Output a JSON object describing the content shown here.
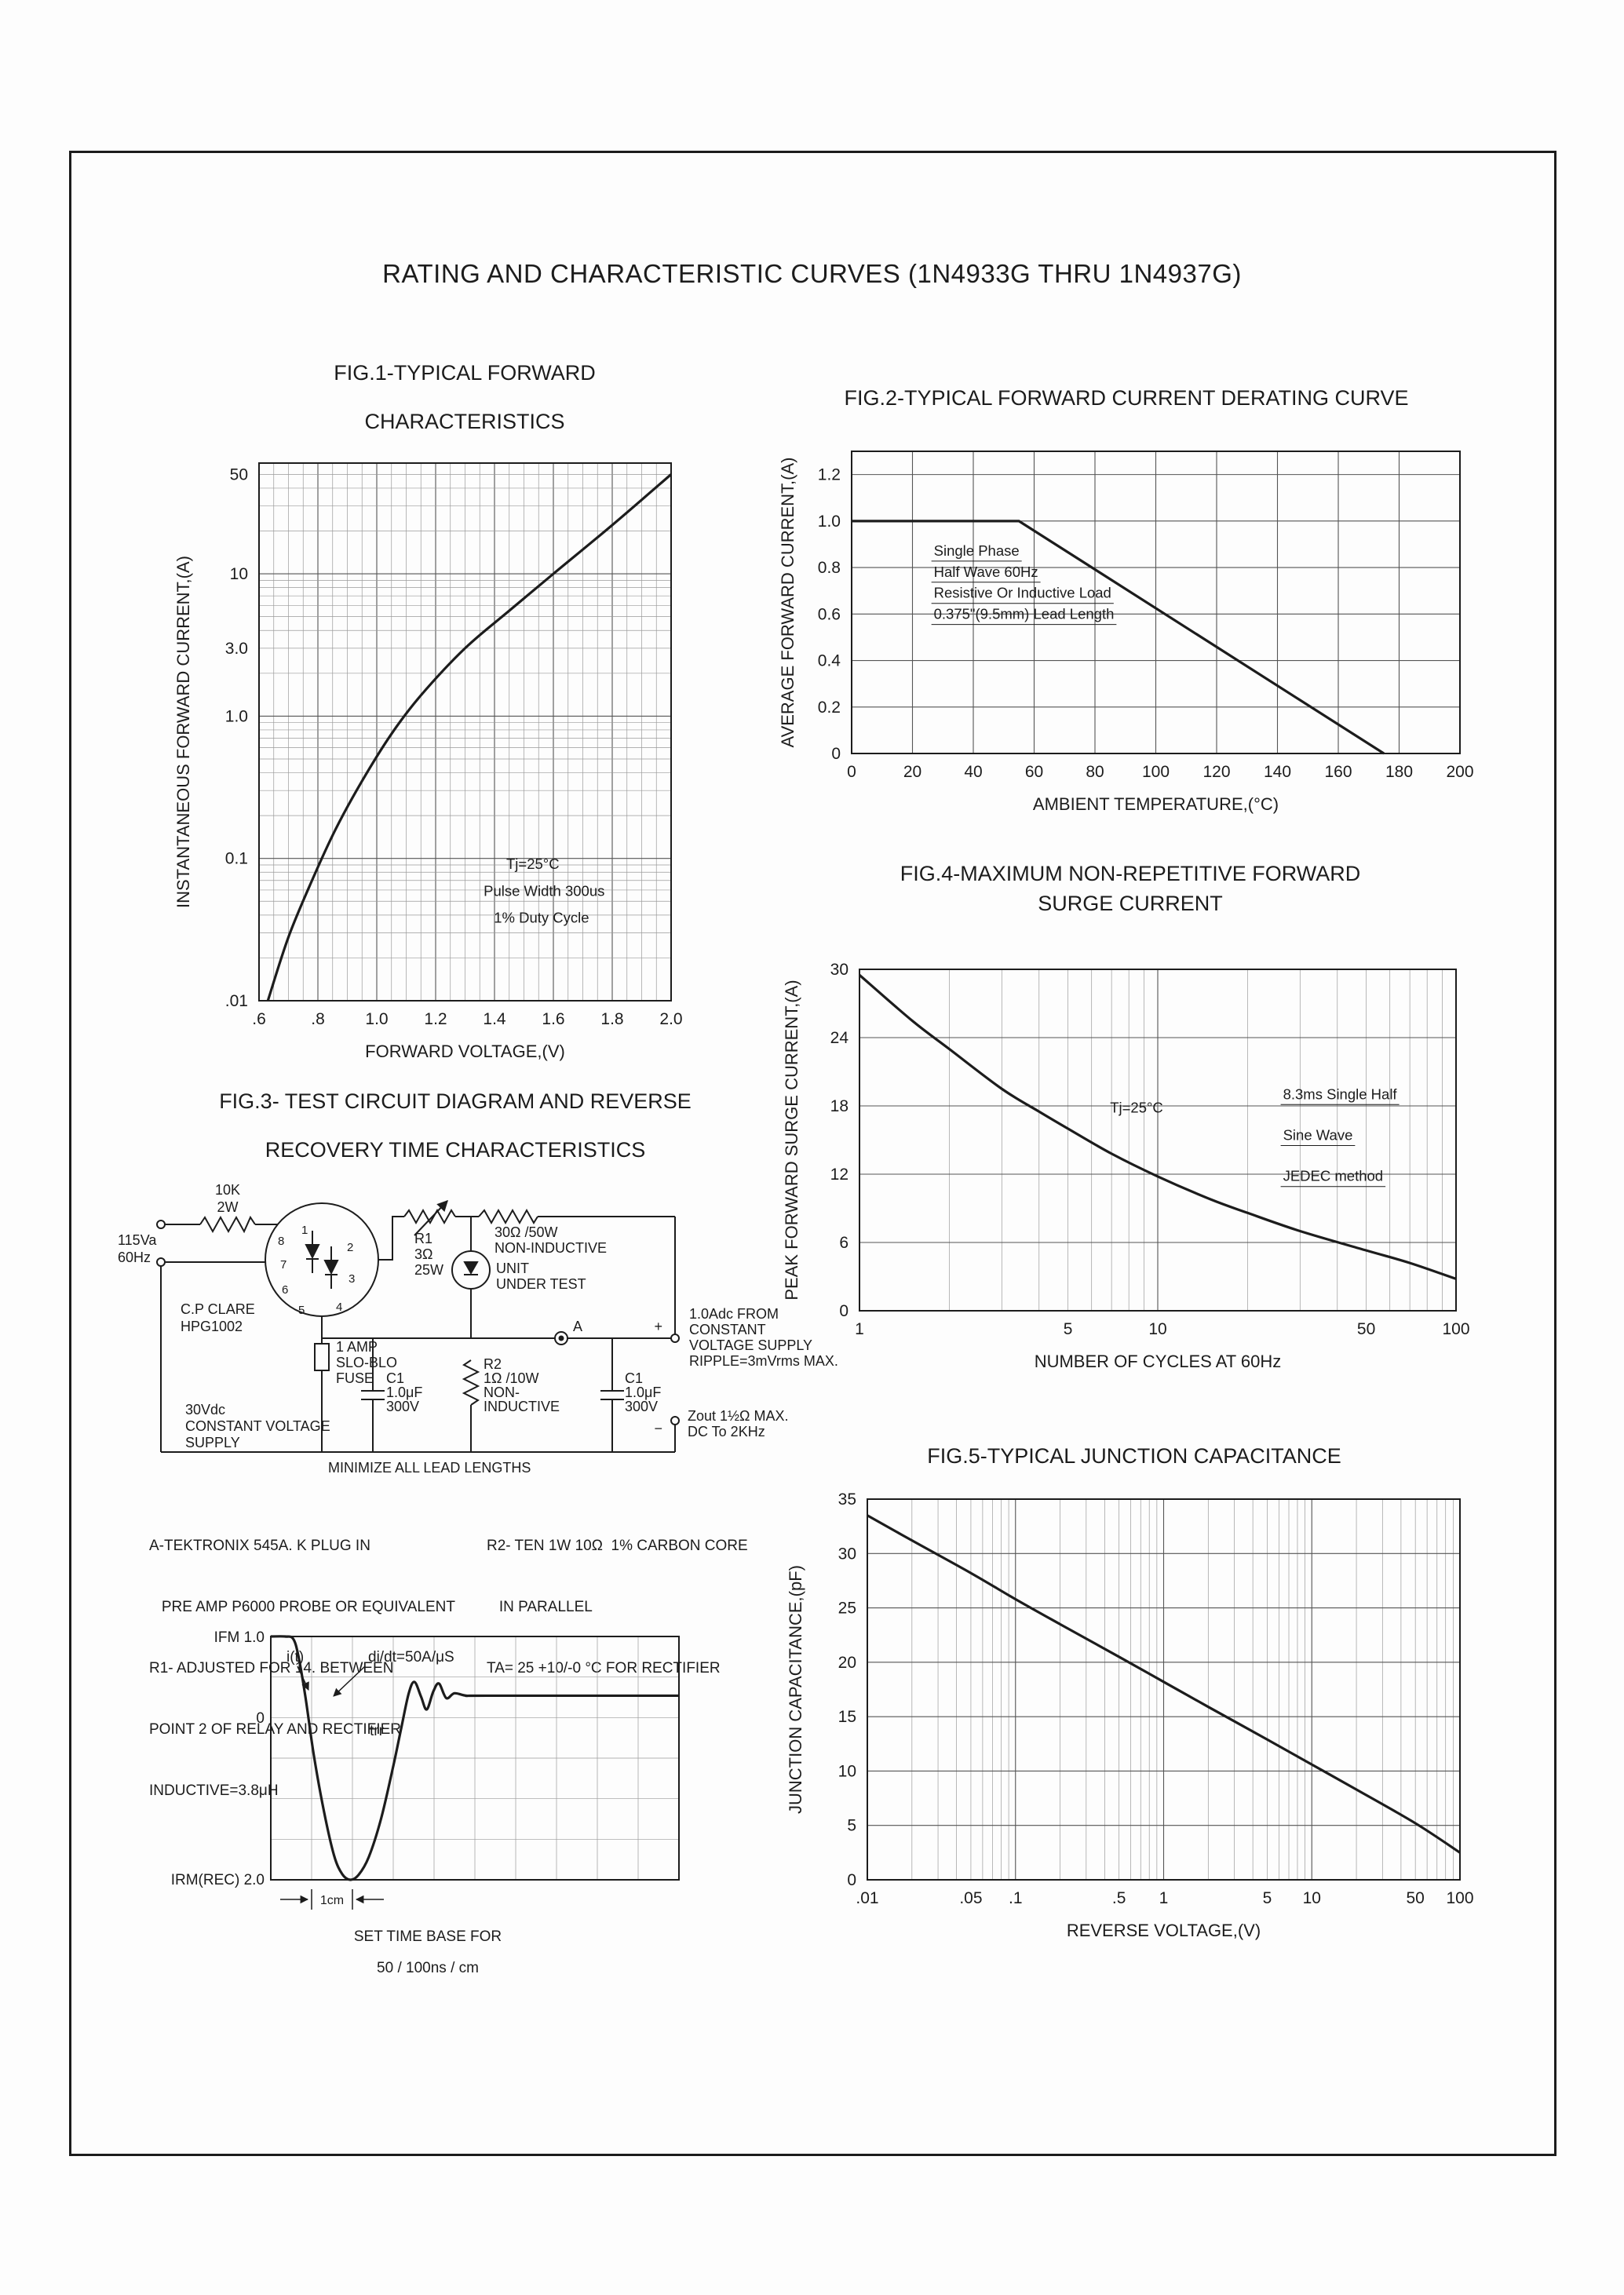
{
  "page": {
    "title": "RATING AND CHARACTERISTIC CURVES (1N4933G THRU 1N4937G)"
  },
  "colors": {
    "ink": "#1c1c1c",
    "grid_major": "#555555",
    "grid_minor": "#9a9a9a",
    "paper": "#fdfdfd"
  },
  "figures": {
    "fig1": {
      "title_lines": [
        "FIG.1-TYPICAL FORWARD",
        "CHARACTERISTICS"
      ]
    },
    "fig2": {
      "title_lines": [
        "FIG.2-TYPICAL FORWARD CURRENT DERATING CURVE"
      ]
    },
    "fig3": {
      "title_lines": [
        "FIG.3- TEST CIRCUIT DIAGRAM AND REVERSE",
        "RECOVERY TIME CHARACTERISTICS"
      ]
    },
    "fig4": {
      "title_lines": [
        "FIG.4-MAXIMUM NON-REPETITIVE FORWARD",
        "SURGE CURRENT"
      ]
    },
    "fig5": {
      "title_lines": [
        "FIG.5-TYPICAL JUNCTION CAPACITANCE"
      ]
    }
  },
  "fig3": {
    "circuit": {
      "labels": {
        "r_top": [
          "10K",
          "2W"
        ],
        "source": [
          "115Va",
          "60Hz"
        ],
        "relay": [
          "C.P CLARE",
          "HPG1002"
        ],
        "pins": [
          "8",
          "1",
          "7",
          "2",
          "6",
          "3",
          "5",
          "4"
        ],
        "r1": [
          "R1",
          "3Ω",
          "25W"
        ],
        "r30": [
          "30Ω /50W",
          "NON-INDUCTIVE"
        ],
        "uut": [
          "UNIT",
          "UNDER TEST"
        ],
        "probe": "A",
        "fuse": [
          "1 AMP",
          "SLO-BLO",
          "FUSE"
        ],
        "r2": [
          "R2",
          "1Ω /10W",
          "NON-",
          "INDUCTIVE"
        ],
        "c1_left": [
          "C1",
          "1.0μF",
          "300V"
        ],
        "c1_right": [
          "C1",
          "1.0μF",
          "300V"
        ],
        "supply": [
          "30Vdc",
          "CONSTANT VOLTAGE",
          "SUPPLY"
        ],
        "output_top": [
          "1.0Adc FROM",
          "CONSTANT",
          "VOLTAGE SUPPLY",
          "RIPPLE=3mVrms MAX."
        ],
        "output_bottom": [
          "Zout 1½Ω MAX.",
          "DC To 2KHz"
        ],
        "minimize": "MINIMIZE ALL LEAD LENGTHS",
        "plus": "+",
        "minus": "−"
      }
    },
    "notes_left": [
      "A-TEKTRONIX 545A. K PLUG IN",
      "   PRE AMP P6000 PROBE OR EQUIVALENT",
      "R1- ADJUSTED FOR 14. BETWEEN",
      "POINT 2 OF RELAY AND RECTIFIER",
      "INDUCTIVE=3.8μH"
    ],
    "notes_right": [
      "R2- TEN 1W 10Ω  1% CARBON CORE",
      "   IN PARALLEL",
      "TA= 25 +10/-0 °C FOR RECTIFIER"
    ],
    "waveform_labels": {
      "ifm": "IFM 1.0",
      "zero": "0",
      "irm": "IRM(REC) 2.0",
      "it": "i(t)",
      "didt": "di/dt=50A/μS",
      "trr": "trr",
      "one_cm": "1cm",
      "timebase1": "SET TIME BASE FOR",
      "timebase2": "50 / 100ns / cm"
    }
  },
  "chart_data": [
    {
      "id": "fig1",
      "type": "line",
      "title": "FIG.1-TYPICAL FORWARD CHARACTERISTICS",
      "xlabel": "FORWARD VOLTAGE,(V)",
      "ylabel": "INSTANTANEOUS FORWARD CURRENT,(A)",
      "xscale": "linear",
      "yscale": "log",
      "xlim": [
        0.6,
        2.0
      ],
      "ylim": [
        0.01,
        60
      ],
      "xticks": [
        [
          0.6,
          ".6"
        ],
        [
          0.8,
          ".8"
        ],
        [
          1.0,
          "1.0"
        ],
        [
          1.2,
          "1.2"
        ],
        [
          1.4,
          "1.4"
        ],
        [
          1.6,
          "1.6"
        ],
        [
          1.8,
          "1.8"
        ],
        [
          2.0,
          "2.0"
        ]
      ],
      "yticks": [
        [
          50,
          "50"
        ],
        [
          10,
          "10"
        ],
        [
          3,
          "3.0"
        ],
        [
          1,
          "1.0"
        ],
        [
          0.1,
          "0.1"
        ],
        [
          0.01,
          ".01"
        ]
      ],
      "grid": {
        "x_step": 0.2,
        "x_minor_step": 0.05,
        "y_log_minor": true
      },
      "series": [
        {
          "name": "typical forward current",
          "x": [
            0.63,
            0.7,
            0.78,
            0.86,
            0.95,
            1.05,
            1.15,
            1.3,
            1.45,
            1.6,
            1.8,
            2.0
          ],
          "y": [
            0.01,
            0.028,
            0.07,
            0.16,
            0.35,
            0.75,
            1.4,
            3.0,
            5.5,
            10,
            22,
            50
          ]
        }
      ],
      "annotations": [
        {
          "text": "Tj=25°C",
          "fx": 0.6,
          "fy": 0.755
        },
        {
          "text": "Pulse Width 300us",
          "fx": 0.545,
          "fy": 0.805
        },
        {
          "text": "1% Duty Cycle",
          "fx": 0.57,
          "fy": 0.855
        }
      ]
    },
    {
      "id": "fig2",
      "type": "line",
      "title": "FIG.2-TYPICAL FORWARD CURRENT DERATING CURVE",
      "xlabel": "AMBIENT TEMPERATURE,(°C)",
      "ylabel": "AVERAGE FORWARD CURRENT,(A)",
      "xscale": "linear",
      "yscale": "linear",
      "xlim": [
        0,
        200
      ],
      "ylim": [
        0,
        1.3
      ],
      "xticks": [
        [
          0,
          "0"
        ],
        [
          20,
          "20"
        ],
        [
          40,
          "40"
        ],
        [
          60,
          "60"
        ],
        [
          80,
          "80"
        ],
        [
          100,
          "100"
        ],
        [
          120,
          "120"
        ],
        [
          140,
          "140"
        ],
        [
          160,
          "160"
        ],
        [
          180,
          "180"
        ],
        [
          200,
          "200"
        ]
      ],
      "yticks": [
        [
          0,
          "0"
        ],
        [
          0.2,
          "0.2"
        ],
        [
          0.4,
          "0.4"
        ],
        [
          0.6,
          "0.6"
        ],
        [
          0.8,
          "0.8"
        ],
        [
          1.0,
          "1.0"
        ],
        [
          1.2,
          "1.2"
        ]
      ],
      "grid": {
        "x_step": 20,
        "y_step": 0.2
      },
      "smooth": false,
      "series": [
        {
          "name": "derating",
          "x": [
            0,
            55,
            175
          ],
          "y": [
            1.0,
            1.0,
            0
          ]
        }
      ],
      "annotations": [
        {
          "text": "Single Phase",
          "fx": 0.135,
          "fy": 0.345,
          "underline": true
        },
        {
          "text": "Half Wave 60Hz",
          "fx": 0.135,
          "fy": 0.415,
          "underline": true
        },
        {
          "text": "Resistive Or Inductive Load",
          "fx": 0.135,
          "fy": 0.485,
          "underline": true
        },
        {
          "text": "0.375\"(9.5mm) Lead Length",
          "fx": 0.135,
          "fy": 0.555,
          "underline": true
        }
      ]
    },
    {
      "id": "fig4",
      "type": "line",
      "title": "FIG.4-MAXIMUM NON-REPETITIVE FORWARD SURGE CURRENT",
      "xlabel": "NUMBER OF CYCLES AT 60Hz",
      "ylabel": "PEAK FORWARD SURGE CURRENT,(A)",
      "xscale": "log",
      "yscale": "linear",
      "xlim": [
        1,
        100
      ],
      "ylim": [
        0,
        30
      ],
      "xticks": [
        [
          1,
          "1"
        ],
        [
          5,
          "5"
        ],
        [
          10,
          "10"
        ],
        [
          50,
          "50"
        ],
        [
          100,
          "100"
        ]
      ],
      "yticks": [
        [
          0,
          "0"
        ],
        [
          6,
          "6"
        ],
        [
          12,
          "12"
        ],
        [
          18,
          "18"
        ],
        [
          24,
          "24"
        ],
        [
          30,
          "30"
        ]
      ],
      "grid": {
        "x_log_minor": true,
        "y_step": 6
      },
      "series": [
        {
          "name": "peak surge current",
          "x": [
            1,
            1.5,
            2,
            3,
            4,
            5,
            7,
            10,
            15,
            20,
            30,
            50,
            70,
            100
          ],
          "y": [
            29.5,
            25.5,
            23,
            19.5,
            17.5,
            16,
            13.8,
            11.8,
            9.8,
            8.6,
            7,
            5.3,
            4.2,
            2.8
          ]
        }
      ],
      "annotations": [
        {
          "text": "Tj=25°C",
          "fx": 0.42,
          "fy": 0.42
        },
        {
          "text": "8.3ms Single Half",
          "fx": 0.71,
          "fy": 0.38,
          "underline": true
        },
        {
          "text": "Sine Wave",
          "fx": 0.71,
          "fy": 0.5,
          "underline": true
        },
        {
          "text": "JEDEC method",
          "fx": 0.71,
          "fy": 0.62,
          "underline": true
        }
      ]
    },
    {
      "id": "fig5",
      "type": "line",
      "title": "FIG.5-TYPICAL JUNCTION CAPACITANCE",
      "xlabel": "REVERSE VOLTAGE,(V)",
      "ylabel": "JUNCTION CAPACITANCE,(pF)",
      "xscale": "log",
      "yscale": "linear",
      "xlim": [
        0.01,
        100
      ],
      "ylim": [
        0,
        35
      ],
      "xticks": [
        [
          0.01,
          ".01"
        ],
        [
          0.05,
          ".05"
        ],
        [
          0.1,
          ".1"
        ],
        [
          0.5,
          ".5"
        ],
        [
          1,
          "1"
        ],
        [
          5,
          "5"
        ],
        [
          10,
          "10"
        ],
        [
          50,
          "50"
        ],
        [
          100,
          "100"
        ]
      ],
      "yticks": [
        [
          0,
          "0"
        ],
        [
          5,
          "5"
        ],
        [
          10,
          "10"
        ],
        [
          15,
          "15"
        ],
        [
          20,
          "20"
        ],
        [
          25,
          "25"
        ],
        [
          30,
          "30"
        ],
        [
          35,
          "35"
        ]
      ],
      "grid": {
        "x_log_minor": true,
        "y_step": 5
      },
      "series": [
        {
          "name": "junction capacitance",
          "x": [
            0.01,
            0.02,
            0.05,
            0.1,
            0.2,
            0.5,
            1,
            2,
            5,
            10,
            20,
            50,
            100
          ],
          "y": [
            33.5,
            31.2,
            28.2,
            25.8,
            23.5,
            20.5,
            18.2,
            15.9,
            12.9,
            10.6,
            8.3,
            5.2,
            2.5
          ]
        }
      ]
    },
    {
      "id": "trr",
      "type": "line",
      "title": "",
      "xlabel": "",
      "ylabel": "",
      "xscale": "linear",
      "yscale": "linear",
      "xlim": [
        0,
        10
      ],
      "ylim": [
        -2,
        1
      ],
      "grid": {
        "x_minor_step": 1,
        "y_minor_step": 0.5
      },
      "series": [
        {
          "name": "i(t)",
          "x": [
            0,
            0.35,
            0.55,
            0.68,
            0.85,
            1.05,
            1.3,
            1.55,
            1.75,
            1.95,
            2.15,
            2.4,
            2.7,
            3.0,
            3.2,
            3.38,
            3.52,
            3.68,
            3.82,
            3.98,
            4.12,
            4.3,
            4.5,
            4.8,
            5.3,
            10
          ],
          "y": [
            1,
            1,
            0.97,
            0.75,
            0.25,
            -0.45,
            -1.15,
            -1.7,
            -1.93,
            -2,
            -1.94,
            -1.72,
            -1.25,
            -0.6,
            -0.12,
            0.3,
            0.44,
            0.26,
            0.1,
            0.32,
            0.42,
            0.24,
            0.3,
            0.27,
            0.27,
            0.27
          ]
        }
      ]
    }
  ]
}
